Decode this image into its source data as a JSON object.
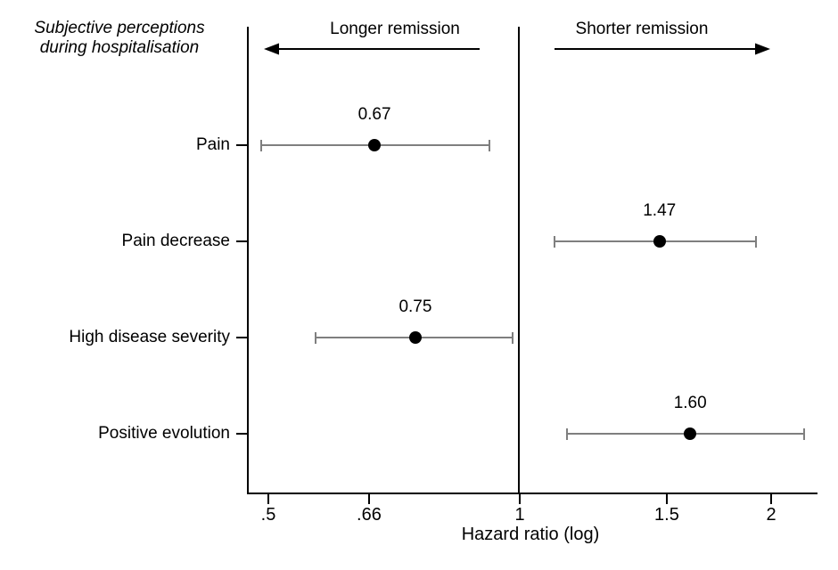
{
  "title": {
    "line1": "Subjective perceptions",
    "line2": "during hospitalisation"
  },
  "header": {
    "left_label": "Longer remission",
    "right_label": "Shorter remission"
  },
  "chart_data": {
    "type": "scatter",
    "variant": "forest-plot",
    "title": "Subjective perceptions during hospitalisation",
    "xlabel": "Hazard ratio (log)",
    "x_scale": "log",
    "xlim": [
      0.45,
      2.3
    ],
    "reference_line": 1,
    "grid": false,
    "x_ticks": [
      {
        "label": ".5",
        "value": 0.5
      },
      {
        "label": ".66",
        "value": 0.66
      },
      {
        "label": "1",
        "value": 1
      },
      {
        "label": "1.5",
        "value": 1.5
      },
      {
        "label": "2",
        "value": 2
      }
    ],
    "direction_annotations": {
      "left_of_reference": "Longer remission",
      "right_of_reference": "Shorter remission"
    },
    "rows": [
      {
        "category": "Pain",
        "estimate": 0.67,
        "estimate_label": "0.67",
        "ci_low": 0.49,
        "ci_high": 0.92
      },
      {
        "category": "Pain decrease",
        "estimate": 1.47,
        "estimate_label": "1.47",
        "ci_low": 1.1,
        "ci_high": 1.92
      },
      {
        "category": "High disease severity",
        "estimate": 0.75,
        "estimate_label": "0.75",
        "ci_low": 0.57,
        "ci_high": 0.98
      },
      {
        "category": "Positive evolution",
        "estimate": 1.6,
        "estimate_label": "1.60",
        "ci_low": 1.14,
        "ci_high": 2.19
      }
    ]
  },
  "colors": {
    "background": "#ffffff",
    "axis": "#000000",
    "text": "#000000",
    "error_bar": "#7f7f7f",
    "point": "#000000"
  }
}
